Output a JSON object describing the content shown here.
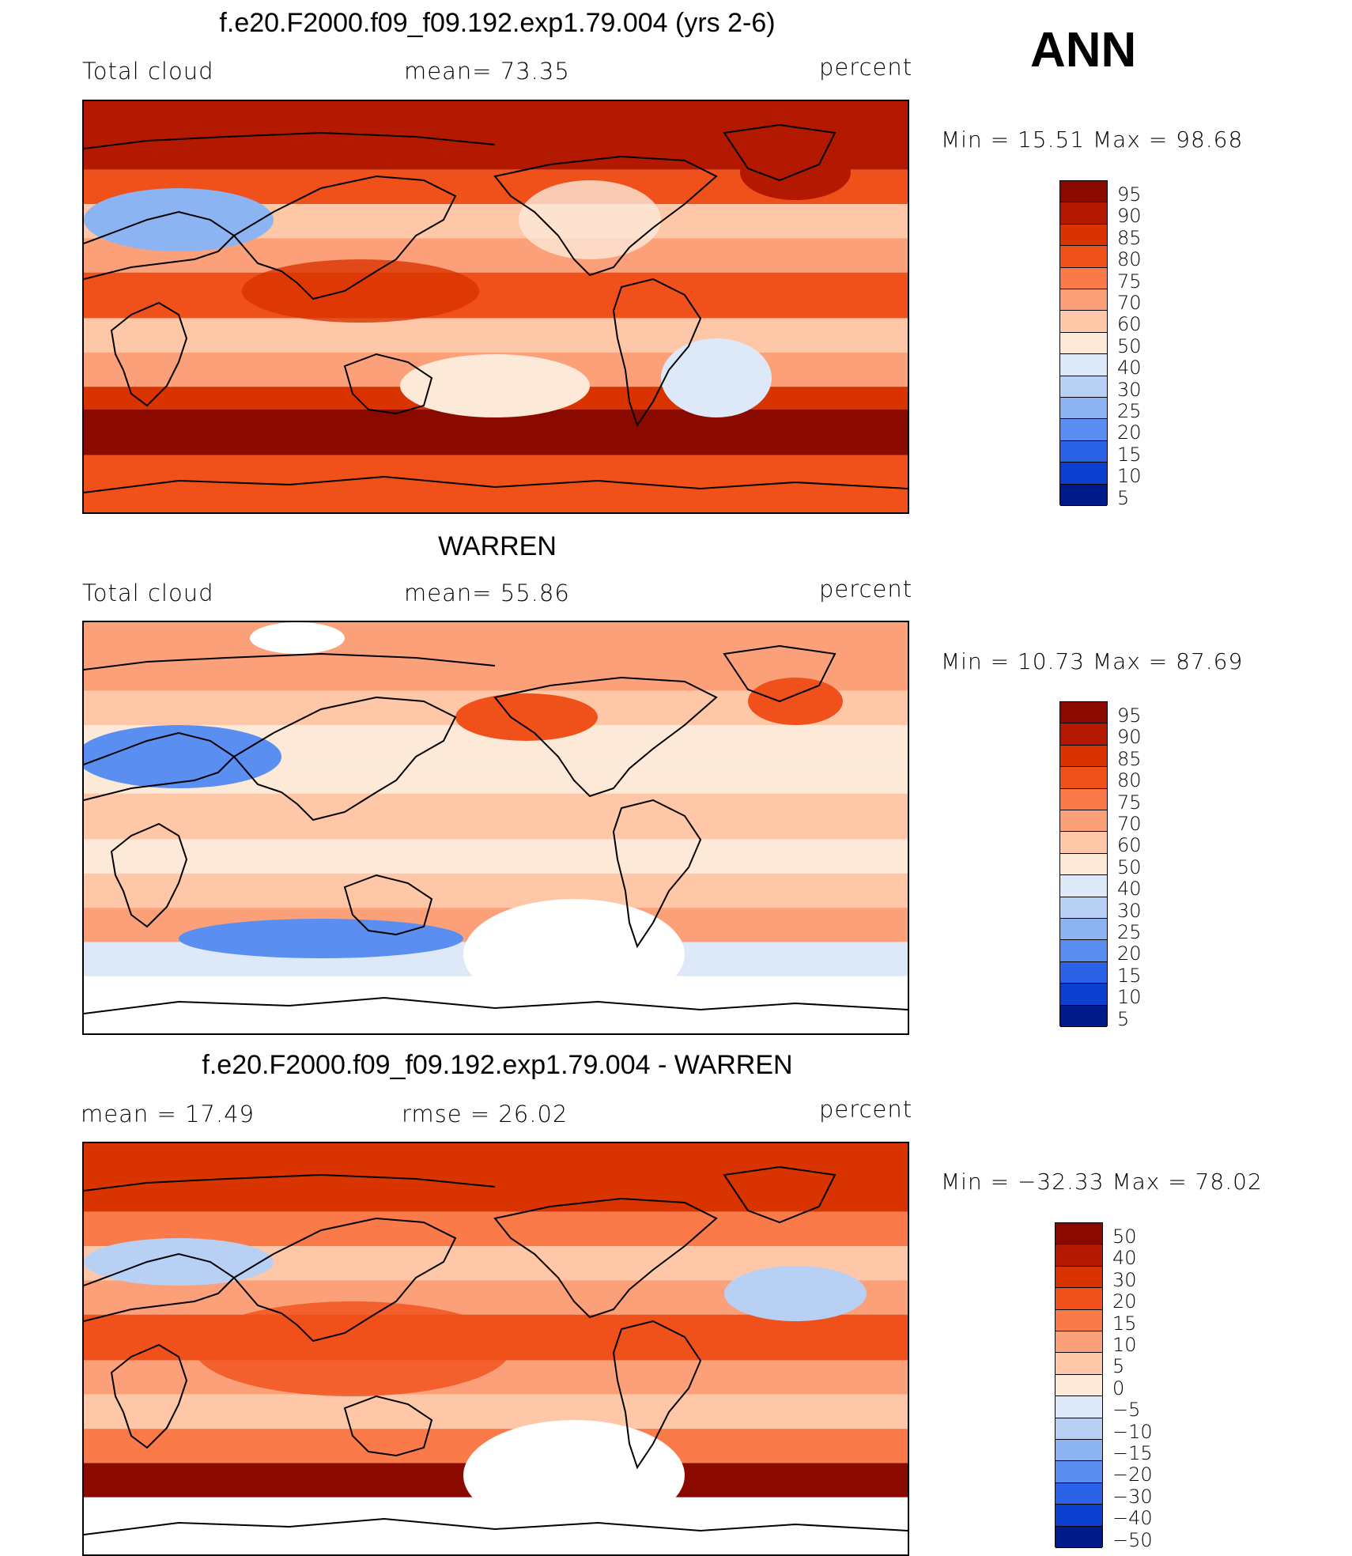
{
  "season": "ANN",
  "panels": [
    {
      "title": "f.e20.F2000.f09_f09.192.exp1.79.004 (yrs 2-6)",
      "left_label": "Total cloud",
      "mid_label": "mean=   73.35",
      "units": "percent",
      "minmax": "Min  =   15.51  Max  =   98.68",
      "kind": "model"
    },
    {
      "title": "WARREN",
      "left_label": "Total cloud",
      "mid_label": "mean=   55.86",
      "units": "percent",
      "minmax": "Min  =   10.73  Max  =   87.69",
      "kind": "obs"
    },
    {
      "title": "f.e20.F2000.f09_f09.192.exp1.79.004 - WARREN",
      "left_label": "mean  =    17.49",
      "mid_label": "rmse  =    26.02",
      "units": "percent",
      "minmax": "Min  = −32.33  Max  =    78.02",
      "kind": "diff"
    }
  ],
  "colorbars": [
    {
      "labels": [
        "95",
        "90",
        "85",
        "80",
        "75",
        "70",
        "60",
        "50",
        "40",
        "30",
        "25",
        "20",
        "15",
        "10",
        "5"
      ],
      "colors": [
        "#8b0a00",
        "#b31900",
        "#d93300",
        "#f0501a",
        "#fa7a4a",
        "#fca07a",
        "#fdc7a8",
        "#fde9d8",
        "#dde8f8",
        "#b9d0f5",
        "#8db4f2",
        "#5a8ef0",
        "#2a63e8",
        "#0a3fd0",
        "#001a8a"
      ]
    },
    {
      "labels": [
        "95",
        "90",
        "85",
        "80",
        "75",
        "70",
        "60",
        "50",
        "40",
        "30",
        "25",
        "20",
        "15",
        "10",
        "5"
      ],
      "colors": [
        "#8b0a00",
        "#b31900",
        "#d93300",
        "#f0501a",
        "#fa7a4a",
        "#fca07a",
        "#fdc7a8",
        "#fde9d8",
        "#dde8f8",
        "#b9d0f5",
        "#8db4f2",
        "#5a8ef0",
        "#2a63e8",
        "#0a3fd0",
        "#001a8a"
      ]
    },
    {
      "labels": [
        "50",
        "40",
        "30",
        "20",
        "15",
        "10",
        "5",
        "0",
        "−5",
        "−10",
        "−15",
        "−20",
        "−30",
        "−40",
        "−50"
      ],
      "colors": [
        "#8b0a00",
        "#b31900",
        "#d93300",
        "#f0501a",
        "#fa7a4a",
        "#fca07a",
        "#fdc7a8",
        "#fde9d8",
        "#dde8f8",
        "#b9d0f5",
        "#8db4f2",
        "#5a8ef0",
        "#2a63e8",
        "#0a3fd0",
        "#001a8a"
      ]
    }
  ]
}
